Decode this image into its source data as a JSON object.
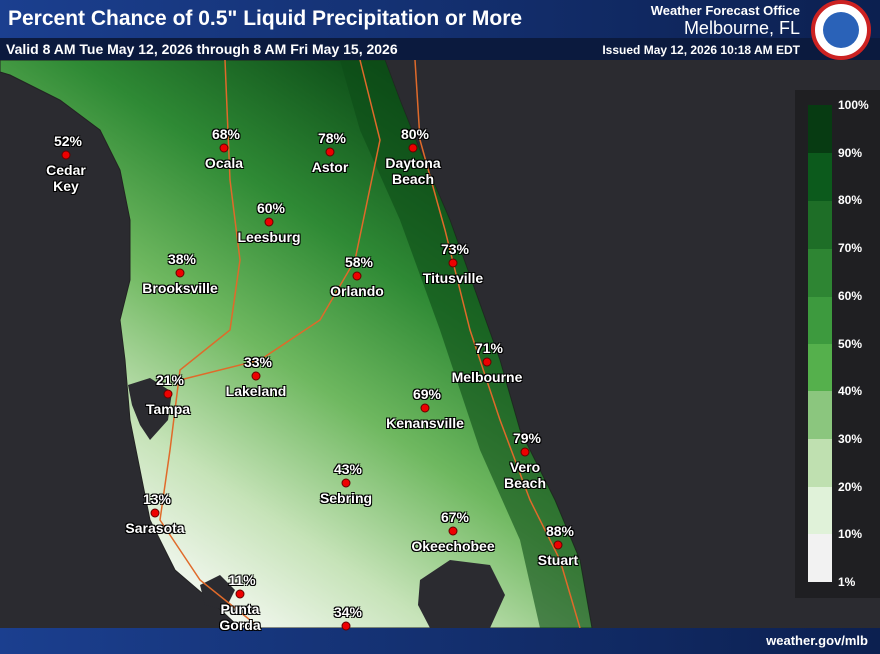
{
  "header": {
    "title": "Percent Chance of 0.5\" Liquid Precipitation or More",
    "valid": "Valid 8 AM Tue May 12, 2026 through 8 AM Fri May 15, 2026",
    "office": "Weather Forecast Office",
    "location": "Melbourne, FL",
    "issued": "Issued May 12, 2026 10:18 AM EDT"
  },
  "cities": [
    {
      "name": "Cedar Key",
      "percent": "52%"
    },
    {
      "name": "Ocala",
      "percent": "68%"
    },
    {
      "name": "Astor",
      "percent": "78%"
    },
    {
      "name": "Daytona Beach",
      "percent": "80%"
    },
    {
      "name": "Leesburg",
      "percent": "60%"
    },
    {
      "name": "Brooksville",
      "percent": "38%"
    },
    {
      "name": "Orlando",
      "percent": "58%"
    },
    {
      "name": "Titusville",
      "percent": "73%"
    },
    {
      "name": "Melbourne",
      "percent": "71%"
    },
    {
      "name": "Lakeland",
      "percent": "33%"
    },
    {
      "name": "Tampa",
      "percent": "21%"
    },
    {
      "name": "Kenansville",
      "percent": "69%"
    },
    {
      "name": "Vero Beach",
      "percent": "79%"
    },
    {
      "name": "Sebring",
      "percent": "43%"
    },
    {
      "name": "Sarasota",
      "percent": "13%"
    },
    {
      "name": "Okeechobee",
      "percent": "67%"
    },
    {
      "name": "Stuart",
      "percent": "88%"
    },
    {
      "name": "Punta Gorda",
      "percent": "11%"
    },
    {
      "percent": "34%"
    }
  ],
  "legend": {
    "labels": [
      "100%",
      "90%",
      "80%",
      "70%",
      "60%",
      "50%",
      "40%",
      "30%",
      "20%",
      "10%",
      "1%"
    ]
  },
  "footer": {
    "url": "weather.gov/mlb"
  }
}
